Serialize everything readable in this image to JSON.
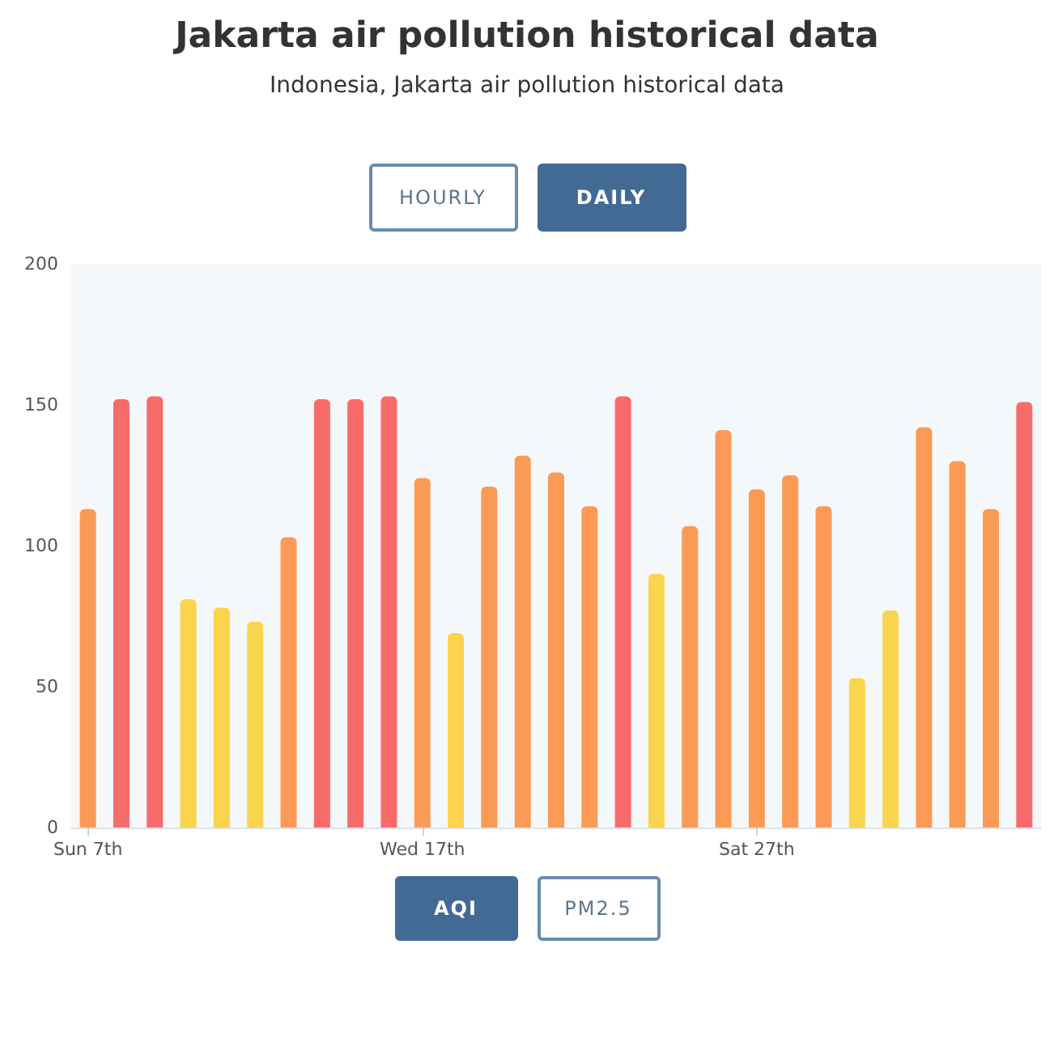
{
  "chart_data": {
    "type": "bar",
    "title": "Jakarta air pollution historical data",
    "subtitle": "Indonesia, Jakarta air pollution historical data",
    "annotations": [
      "HOURLY",
      "DAILY",
      "AQI",
      "PM2.5"
    ],
    "categories": [
      "Sun 7th",
      null,
      null,
      null,
      null,
      null,
      null,
      null,
      null,
      null,
      "Wed 17th",
      null,
      null,
      null,
      null,
      null,
      null,
      null,
      null,
      null,
      "Sat 27th",
      null,
      null,
      null,
      null,
      null,
      null,
      null,
      null
    ],
    "values": [
      113,
      152,
      153,
      81,
      78,
      73,
      103,
      152,
      152,
      153,
      124,
      69,
      121,
      132,
      126,
      114,
      153,
      90,
      107,
      141,
      120,
      125,
      114,
      53,
      77,
      142,
      130,
      113,
      151
    ],
    "colors": [
      "#fb9a55",
      "#f86b6b",
      "#f86b6b",
      "#fbd44d",
      "#fbd44d",
      "#fbd44d",
      "#fb9a55",
      "#f86b6b",
      "#f86b6b",
      "#f86b6b",
      "#fb9a55",
      "#fbd44d",
      "#fb9a55",
      "#fb9a55",
      "#fb9a55",
      "#fb9a55",
      "#f86b6b",
      "#fbd44d",
      "#fb9a55",
      "#fb9a55",
      "#fb9a55",
      "#fb9a55",
      "#fb9a55",
      "#fbd44d",
      "#fbd44d",
      "#fb9a55",
      "#fb9a55",
      "#fb9a55",
      "#f86b6b"
    ],
    "ylim": [
      0,
      200
    ],
    "yticks": [
      0,
      50,
      100,
      150,
      200
    ]
  }
}
